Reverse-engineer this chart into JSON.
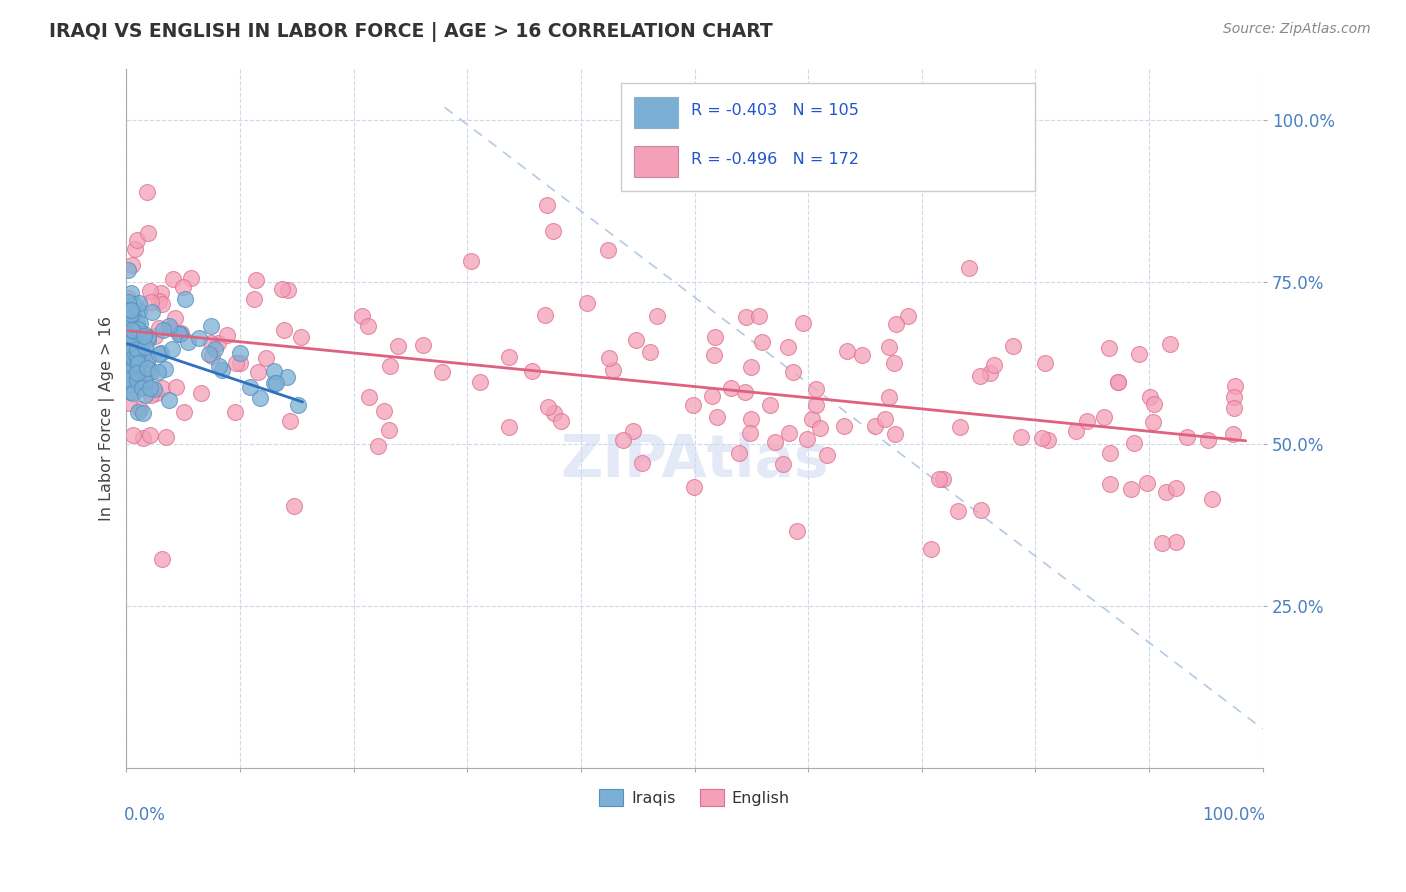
{
  "title": "IRAQI VS ENGLISH IN LABOR FORCE | AGE > 16 CORRELATION CHART",
  "source": "Source: ZipAtlas.com",
  "ylabel": "In Labor Force | Age > 16",
  "iraqi_color": "#7bafd4",
  "iraqi_edge_color": "#5590c0",
  "english_color": "#f4a0b8",
  "english_edge_color": "#e07090",
  "iraqi_line_color": "#3070c0",
  "english_line_color": "#e06080",
  "ref_line_color": "#a8c0e0",
  "background_color": "#ffffff",
  "grid_color": "#d0d8ec",
  "axis_label_color": "#4a7fc1",
  "title_color": "#333333",
  "source_color": "#888888",
  "watermark_color": "#ccd8f0",
  "legend_text_color": "#2255cc",
  "iraqi_R": -0.403,
  "iraqi_N": 105,
  "english_R": -0.496,
  "english_N": 172,
  "xlim": [
    0.0,
    1.0
  ],
  "ylim": [
    0.0,
    1.08
  ],
  "yticks": [
    0.25,
    0.5,
    0.75,
    1.0
  ],
  "ytick_labels": [
    "25.0%",
    "50.0%",
    "75.0%",
    "100.0%"
  ],
  "xticks": [
    0.0,
    0.1,
    0.2,
    0.3,
    0.4,
    0.5,
    0.6,
    0.7,
    0.8,
    0.9,
    1.0
  ],
  "ref_line_x": [
    0.28,
    1.0
  ],
  "ref_line_y": [
    1.02,
    0.06
  ],
  "iraqi_trend_x": [
    0.001,
    0.155
  ],
  "iraqi_trend_y_start": 0.655,
  "iraqi_trend_y_end": 0.565,
  "english_trend_x": [
    0.001,
    0.985
  ],
  "english_trend_y_start": 0.675,
  "english_trend_y_end": 0.505,
  "dot_size": 60,
  "dot_alpha": 0.75
}
